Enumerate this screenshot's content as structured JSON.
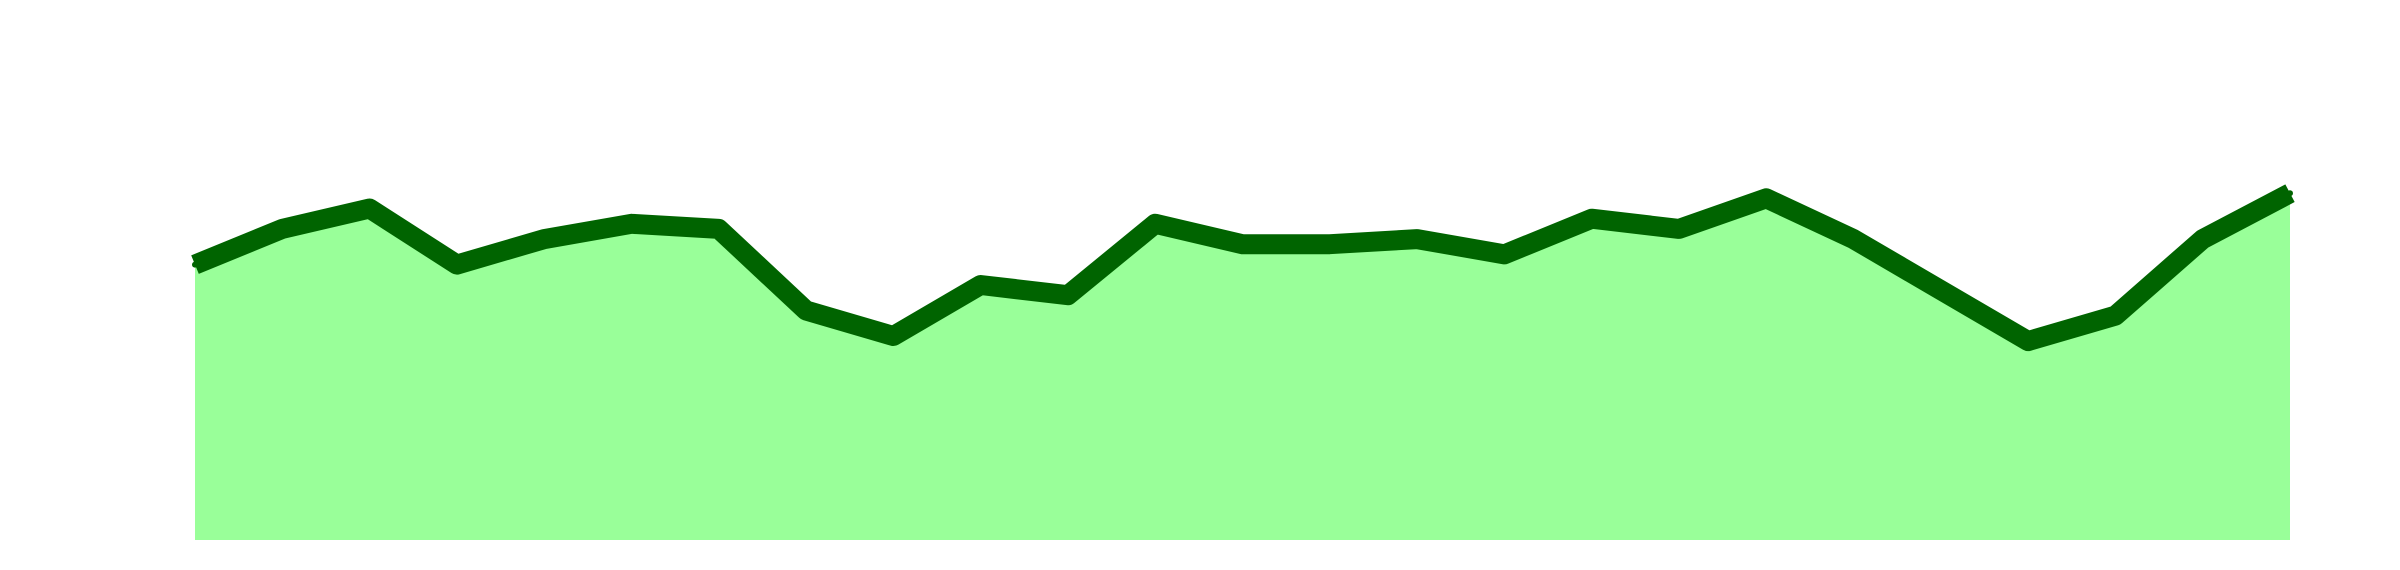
{
  "chart_data": {
    "type": "area",
    "x": [
      0,
      1,
      2,
      3,
      4,
      5,
      6,
      7,
      8,
      9,
      10,
      11,
      12,
      13,
      14,
      15,
      16,
      17,
      18,
      19,
      20,
      21,
      22,
      23,
      24
    ],
    "series": [
      {
        "values": [
          54,
          61,
          65,
          54,
          59,
          62,
          61,
          45,
          40,
          50,
          48,
          62,
          58,
          58,
          59,
          56,
          63,
          61,
          67,
          59,
          49,
          39,
          44,
          59,
          68
        ]
      }
    ],
    "ylim": [
      0,
      100
    ],
    "grid": false,
    "legend": "none",
    "colors": {
      "fill": "#99ff99",
      "line": "#006400"
    }
  }
}
